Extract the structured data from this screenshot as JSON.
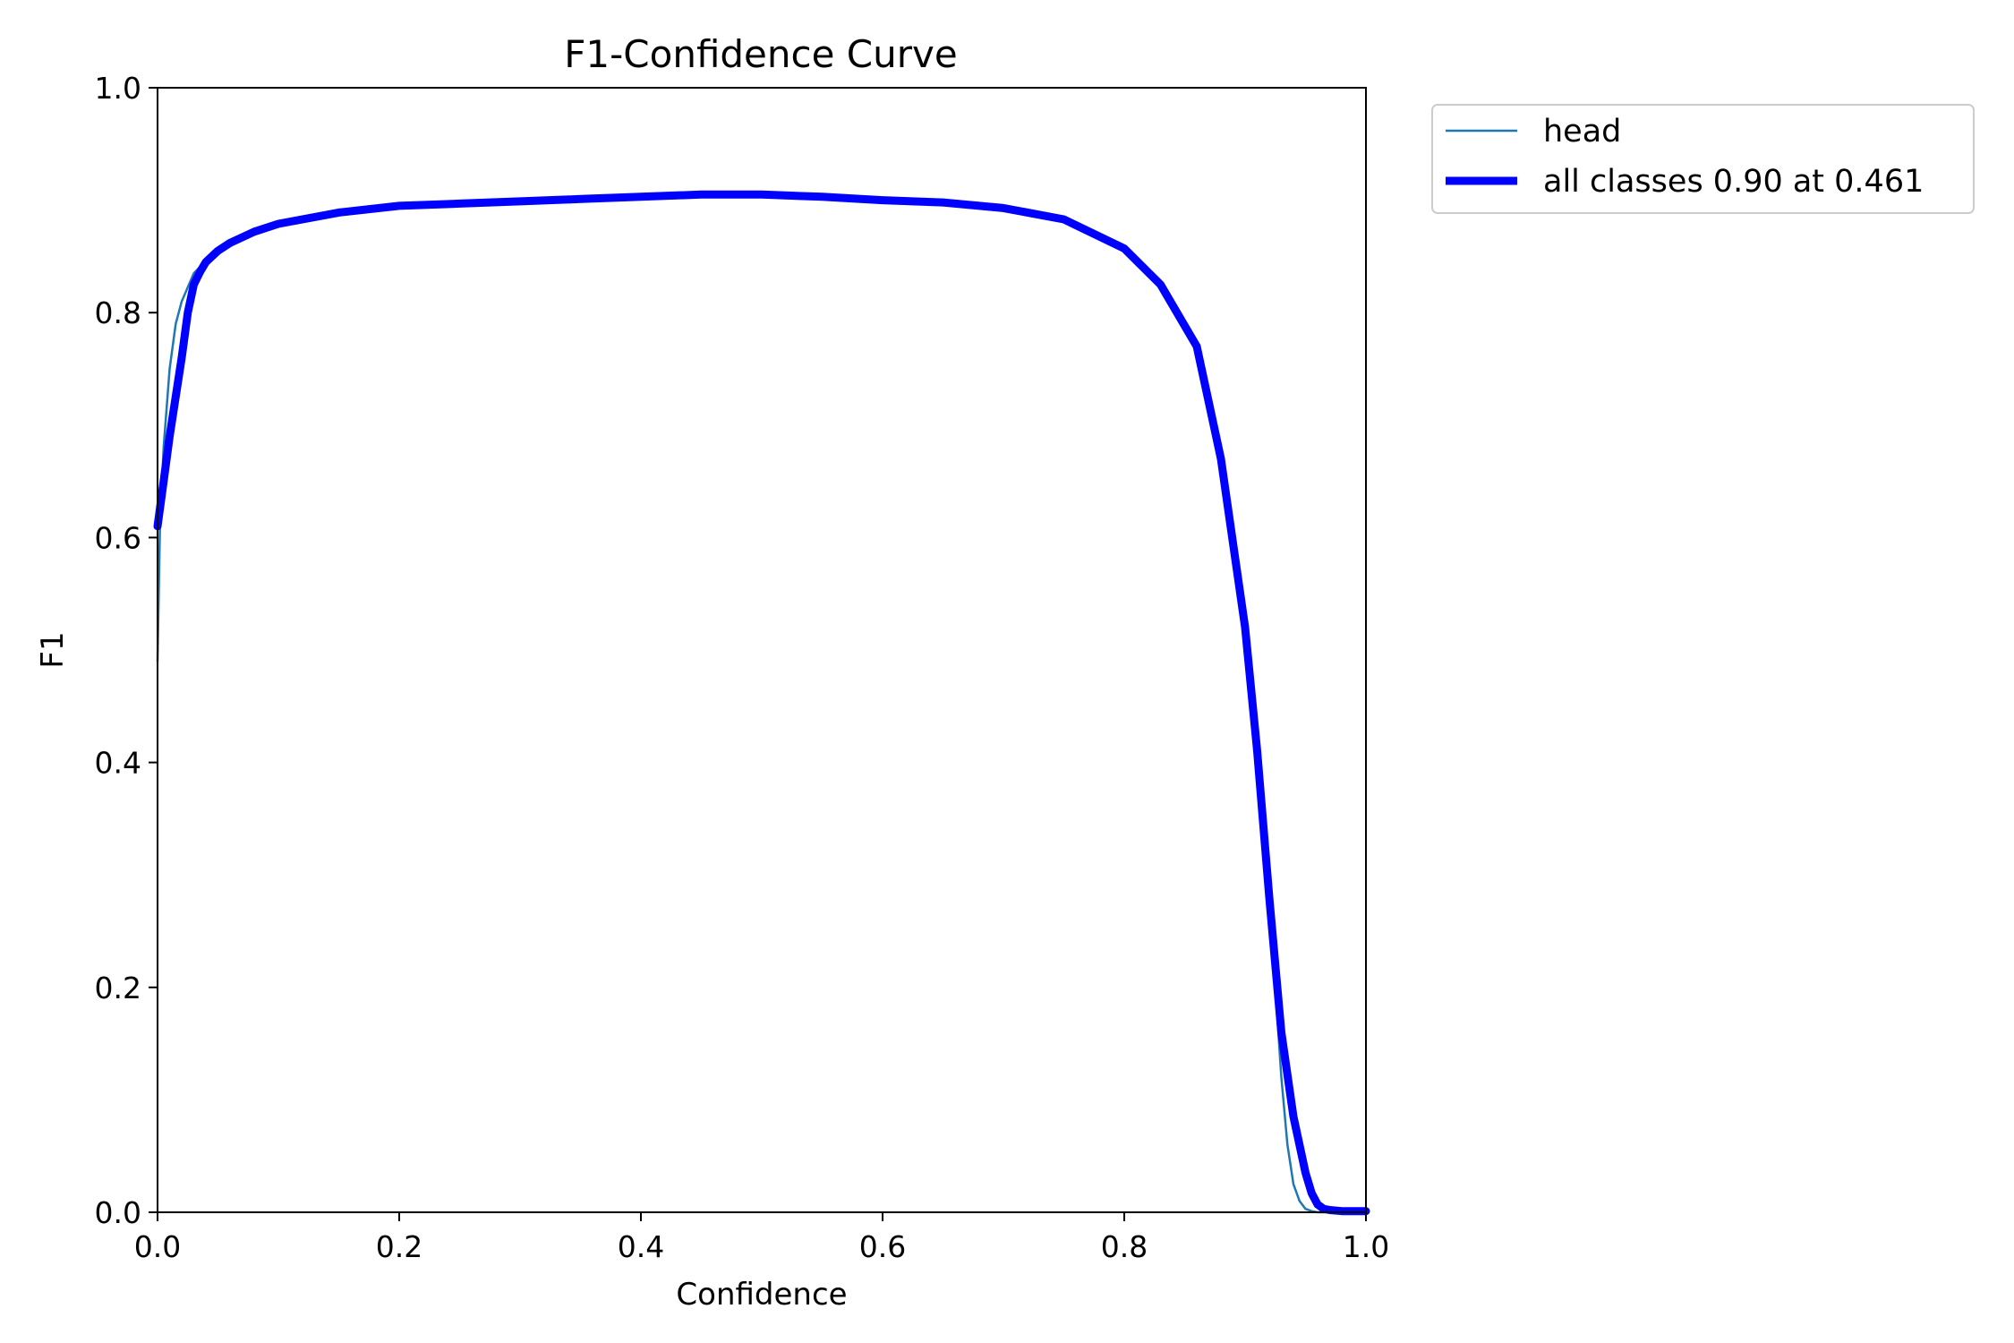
{
  "chart_data": {
    "type": "line",
    "title": "F1-Confidence Curve",
    "xlabel": "Confidence",
    "ylabel": "F1",
    "xlim": [
      0.0,
      1.0
    ],
    "ylim": [
      0.0,
      1.0
    ],
    "xticks": [
      "0.0",
      "0.2",
      "0.4",
      "0.6",
      "0.8",
      "1.0"
    ],
    "yticks": [
      "0.0",
      "0.2",
      "0.4",
      "0.6",
      "0.8",
      "1.0"
    ],
    "grid": false,
    "legend_position": "outside top-right",
    "series": [
      {
        "name": "head",
        "color": "#1f77b4",
        "x": [
          0.0,
          0.002,
          0.005,
          0.01,
          0.015,
          0.02,
          0.03,
          0.04,
          0.05,
          0.06,
          0.08,
          0.1,
          0.15,
          0.2,
          0.25,
          0.3,
          0.35,
          0.4,
          0.45,
          0.5,
          0.55,
          0.6,
          0.65,
          0.7,
          0.75,
          0.8,
          0.83,
          0.86,
          0.88,
          0.9,
          0.91,
          0.92,
          0.93,
          0.935,
          0.94,
          0.945,
          0.95,
          0.955,
          0.96,
          0.97,
          0.98,
          1.0
        ],
        "y": [
          0.49,
          0.61,
          0.68,
          0.75,
          0.79,
          0.81,
          0.835,
          0.846,
          0.855,
          0.862,
          0.872,
          0.879,
          0.889,
          0.895,
          0.897,
          0.899,
          0.901,
          0.903,
          0.905,
          0.905,
          0.903,
          0.9,
          0.898,
          0.893,
          0.883,
          0.857,
          0.825,
          0.77,
          0.67,
          0.52,
          0.41,
          0.28,
          0.12,
          0.06,
          0.025,
          0.01,
          0.003,
          0.001,
          0.0,
          0.0,
          0.0,
          0.0
        ]
      },
      {
        "name": "all classes 0.90 at 0.461",
        "color": "#0000ff",
        "x": [
          0.0,
          0.005,
          0.01,
          0.02,
          0.025,
          0.03,
          0.035,
          0.04,
          0.05,
          0.06,
          0.08,
          0.1,
          0.15,
          0.2,
          0.25,
          0.3,
          0.35,
          0.4,
          0.45,
          0.5,
          0.55,
          0.6,
          0.65,
          0.7,
          0.75,
          0.8,
          0.83,
          0.86,
          0.88,
          0.9,
          0.91,
          0.92,
          0.93,
          0.94,
          0.95,
          0.955,
          0.96,
          0.965,
          0.97,
          0.98,
          1.0
        ],
        "y": [
          0.61,
          0.65,
          0.69,
          0.76,
          0.8,
          0.825,
          0.836,
          0.845,
          0.855,
          0.862,
          0.872,
          0.879,
          0.889,
          0.895,
          0.897,
          0.899,
          0.901,
          0.903,
          0.905,
          0.905,
          0.903,
          0.9,
          0.898,
          0.893,
          0.883,
          0.857,
          0.825,
          0.77,
          0.67,
          0.52,
          0.41,
          0.28,
          0.16,
          0.085,
          0.035,
          0.017,
          0.007,
          0.003,
          0.002,
          0.001,
          0.001
        ]
      }
    ]
  }
}
